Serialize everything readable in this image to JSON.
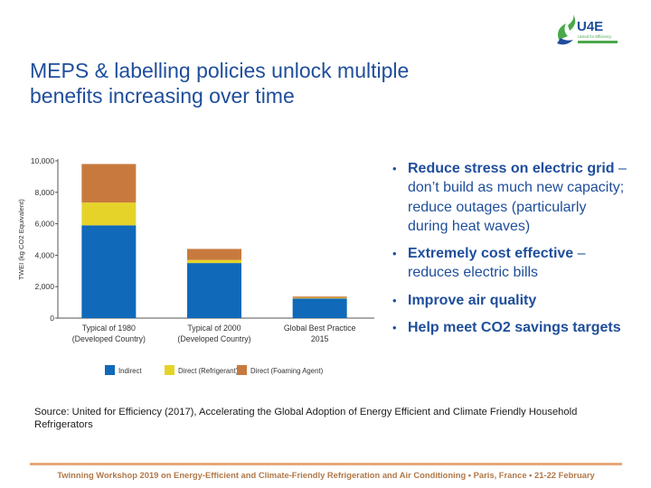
{
  "slide": {
    "title_line1": "MEPS & labelling policies unlock multiple",
    "title_line2": "benefits increasing over time",
    "logo_text": "U4E",
    "logo_tagline": "United for Efficiency"
  },
  "bullets": [
    {
      "bold": "Reduce stress on electric grid",
      "rest": " – don’t build as much new capacity; reduce outages (particularly during heat waves)"
    },
    {
      "bold": "Extremely cost effective",
      "rest": " – reduces electric bills"
    },
    {
      "bold": "Improve air quality",
      "rest": ""
    },
    {
      "bold": "Help meet CO2 savings targets",
      "rest": ""
    }
  ],
  "bullet_glyph": "•",
  "source": "Source: United for Efficiency (2017), Accelerating the Global Adoption of Energy Efficient and Climate Friendly Household Refrigerators",
  "footer": "Twinning Workshop 2019 on Energy-Efficient and Climate-Friendly Refrigeration and Air Conditioning • Paris, France • 21-22 February",
  "colors": {
    "title": "#1f4e9b",
    "indirect": "#1069b9",
    "refrigerant": "#e6d32a",
    "foaming": "#c87a3e",
    "logo_green": "#4aa84a",
    "logo_blue": "#1f4e9b",
    "footer_line": "#e6a87a"
  },
  "chart_data": {
    "type": "bar",
    "stacked": true,
    "categories": [
      [
        "Typical of 1980",
        "(Developed Country)"
      ],
      [
        "Typical of 2000",
        "(Developed Country)"
      ],
      [
        "Global Best Practice",
        "2015"
      ]
    ],
    "series": [
      {
        "name": "Indirect",
        "color_key": "indirect",
        "values": [
          5900,
          3500,
          1250
        ]
      },
      {
        "name": "Direct (Refrigerant)",
        "color_key": "refrigerant",
        "values": [
          1450,
          200,
          40
        ]
      },
      {
        "name": "Direct (Foaming Agent)",
        "color_key": "foaming",
        "values": [
          2450,
          700,
          80
        ]
      }
    ],
    "ylabel": "TWEI (kg CO2 Equivalent)",
    "ylim": [
      0,
      10000
    ],
    "yticks": [
      0,
      2000,
      4000,
      6000,
      8000,
      10000
    ],
    "ytick_labels": [
      "0",
      "2,000",
      "4,000",
      "6,000",
      "8,000",
      "10,000"
    ],
    "grid": false,
    "legend_position": "bottom"
  }
}
